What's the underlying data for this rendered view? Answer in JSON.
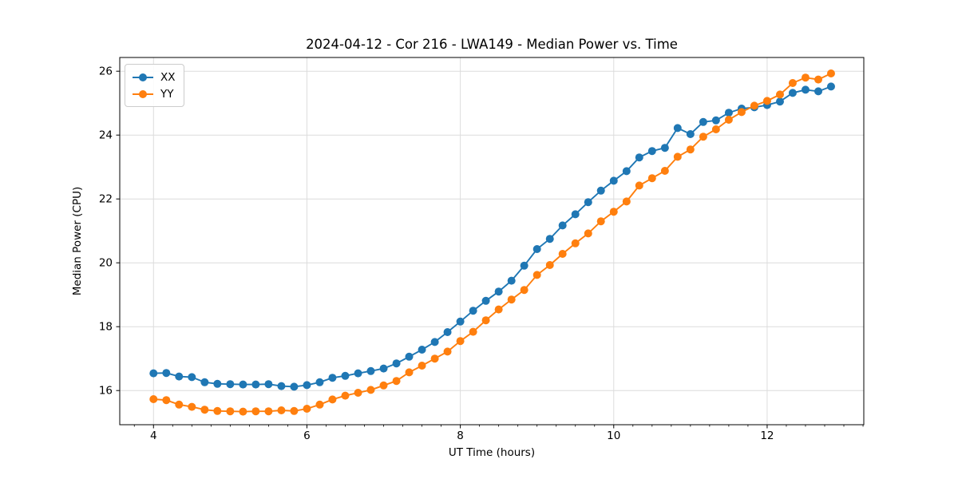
{
  "figure": {
    "background": "#ffffff"
  },
  "chart_data": {
    "type": "line",
    "title": "2024-04-12 - Cor 216 - LWA149 - Median Power vs. Time",
    "xlabel": "UT Time (hours)",
    "ylabel": "Median Power (CPU)",
    "xlim": [
      3.56,
      13.26
    ],
    "ylim": [
      14.93,
      26.43
    ],
    "xticks": [
      4,
      6,
      8,
      10,
      12
    ],
    "yticks": [
      16,
      18,
      20,
      22,
      24,
      26
    ],
    "minor_xtick_step": 0.25,
    "grid": true,
    "grid_color": "#dcdcdc",
    "legend_position": "upper left",
    "x": [
      4.0,
      4.167,
      4.333,
      4.5,
      4.667,
      4.833,
      5.0,
      5.167,
      5.333,
      5.5,
      5.667,
      5.833,
      6.0,
      6.167,
      6.333,
      6.5,
      6.667,
      6.833,
      7.0,
      7.167,
      7.333,
      7.5,
      7.667,
      7.833,
      8.0,
      8.167,
      8.333,
      8.5,
      8.667,
      8.833,
      9.0,
      9.167,
      9.333,
      9.5,
      9.667,
      9.833,
      10.0,
      10.167,
      10.333,
      10.5,
      10.667,
      10.833,
      11.0,
      11.167,
      11.333,
      11.5,
      11.667,
      11.833,
      12.0,
      12.167,
      12.333,
      12.5,
      12.667,
      12.833
    ],
    "series": [
      {
        "name": "XX",
        "color": "#1f77b4",
        "values": [
          16.54,
          16.55,
          16.44,
          16.42,
          16.26,
          16.21,
          16.2,
          16.19,
          16.19,
          16.2,
          16.14,
          16.12,
          16.17,
          16.26,
          16.4,
          16.46,
          16.54,
          16.61,
          16.69,
          16.85,
          17.06,
          17.28,
          17.52,
          17.83,
          18.16,
          18.5,
          18.81,
          19.1,
          19.44,
          19.91,
          20.43,
          20.75,
          21.17,
          21.52,
          21.9,
          22.26,
          22.57,
          22.87,
          23.3,
          23.5,
          23.6,
          24.22,
          24.03,
          24.41,
          24.46,
          24.7,
          24.83,
          24.87,
          24.94,
          25.05,
          25.32,
          25.42,
          25.37,
          25.52
        ]
      },
      {
        "name": "YY",
        "color": "#ff7f0e",
        "values": [
          15.73,
          15.7,
          15.56,
          15.49,
          15.4,
          15.36,
          15.35,
          15.34,
          15.35,
          15.35,
          15.38,
          15.36,
          15.43,
          15.56,
          15.72,
          15.84,
          15.93,
          16.02,
          16.16,
          16.3,
          16.57,
          16.78,
          17.0,
          17.22,
          17.55,
          17.84,
          18.2,
          18.54,
          18.85,
          19.15,
          19.62,
          19.93,
          20.28,
          20.61,
          20.92,
          21.3,
          21.6,
          21.92,
          22.42,
          22.65,
          22.88,
          23.32,
          23.55,
          23.95,
          24.18,
          24.48,
          24.72,
          24.92,
          25.07,
          25.27,
          25.63,
          25.8,
          25.74,
          25.93
        ]
      }
    ]
  }
}
